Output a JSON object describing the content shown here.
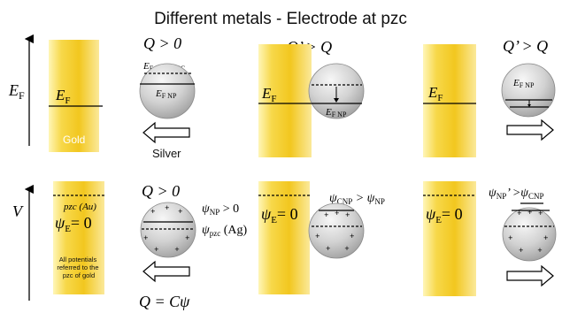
{
  "title": "Different metals - Electrode at pzc",
  "colors": {
    "gold": "#f2c71f",
    "gold_light": "#fff6b8",
    "sphere": "#b9b9b9",
    "sphere_light": "#f4f4f4"
  },
  "axis_labels": {
    "top": "E",
    "top_sub": "F",
    "bottom": "V"
  },
  "top": {
    "panel1": {
      "bar_E": "E",
      "bar_E_sub": "F",
      "bar_label": "Gold",
      "Q_label": "Q > 0",
      "np_pzc_E": "E",
      "np_pzc_sub": "F NP @PZC",
      "np_E": "E",
      "np_sub": "F NP",
      "sphere_label": "Silver"
    },
    "panel2": {
      "Q_label": "Q’ > Q",
      "bar_E": "E",
      "bar_E_sub": "F",
      "np_E": "E",
      "np_sub": "F NP"
    },
    "panel3": {
      "Q_label": "Q’ > Q",
      "bar_E": "E",
      "bar_E_sub": "F",
      "np_E": "E",
      "np_sub": "F NP"
    }
  },
  "bottom": {
    "panel1": {
      "pzc_label": "pzc (Au)",
      "psi": "ψ",
      "psi_sub": "E",
      "psi_eq": "= 0",
      "note": [
        "All potentials",
        "referred to the",
        "pzc of gold"
      ],
      "Q_label": "Q > 0",
      "psi_np": "ψ",
      "psi_np_sub": "NP",
      "psi_np_rest": " > 0",
      "psi_pzc": "ψ",
      "psi_pzc_sub": "pzc",
      "psi_pzc_rest": " (Ag)",
      "formula": "Q = Cψ"
    },
    "panel2": {
      "psi": "ψ",
      "psi_sub": "E",
      "psi_eq": "= 0",
      "cmp_a": "ψ",
      "cmp_a_sub": "CNP",
      "cmp_mid": " > ψ",
      "cmp_b_sub": "NP"
    },
    "panel3": {
      "psi": "ψ",
      "psi_sub": "E",
      "psi_eq": "= 0",
      "cmp_a": "ψ",
      "cmp_a_sub": "NP",
      "cmp_mid": "’ >ψ",
      "cmp_b_sub": "CNP"
    }
  },
  "charge_sign": "+"
}
